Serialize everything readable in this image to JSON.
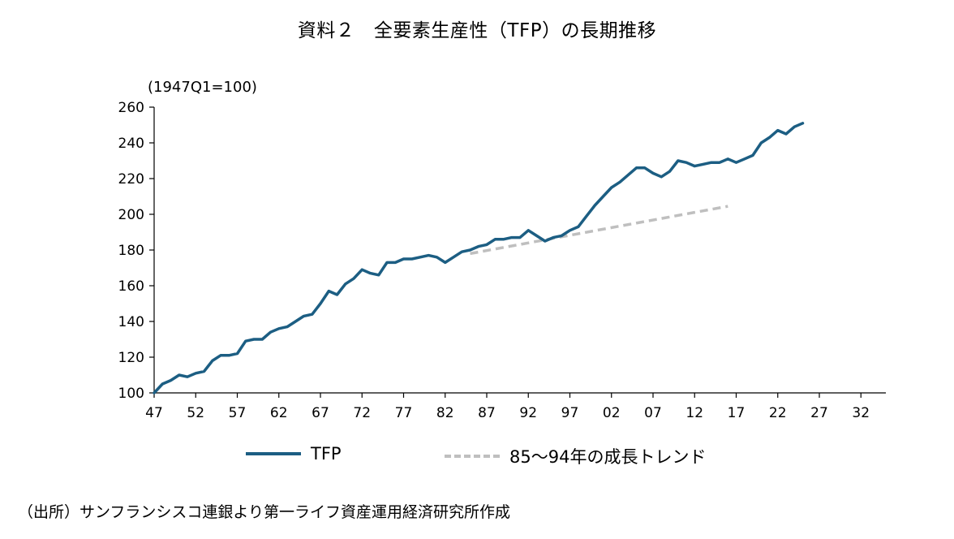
{
  "title": "資料２　全要素生産性（TFP）の長期推移",
  "unit_label": "(1947Q1=100)",
  "source": "（出所）サンフランシスコ連銀より第一ライフ資産運用経済研究所作成",
  "legend": {
    "tfp": "TFP",
    "trend": "85～94年の成長トレンド"
  },
  "colors": {
    "tfp": "#1c5e83",
    "trend": "#bfbfbf",
    "axis": "#000000"
  },
  "chart_data": {
    "type": "line",
    "title": "資料２　全要素生産性（TFP）の長期推移",
    "ylabel": "(1947Q1=100)",
    "xlabel": "",
    "ylim": [
      100,
      260
    ],
    "xlim": [
      1947,
      2035
    ],
    "y_ticks": [
      "100",
      "120",
      "140",
      "160",
      "180",
      "200",
      "220",
      "240",
      "260"
    ],
    "x_ticks": [
      "47",
      "52",
      "57",
      "62",
      "67",
      "72",
      "77",
      "82",
      "87",
      "92",
      "97",
      "02",
      "07",
      "12",
      "17",
      "22",
      "27",
      "32"
    ],
    "x_tick_years": [
      1947,
      1952,
      1957,
      1962,
      1967,
      1972,
      1977,
      1982,
      1987,
      1992,
      1997,
      2002,
      2007,
      2012,
      2017,
      2022,
      2027,
      2032
    ],
    "series": [
      {
        "name": "TFP",
        "style": "solid",
        "x": [
          1947,
          1948,
          1949,
          1950,
          1951,
          1952,
          1953,
          1954,
          1955,
          1956,
          1957,
          1958,
          1959,
          1960,
          1961,
          1962,
          1963,
          1964,
          1965,
          1966,
          1967,
          1968,
          1969,
          1970,
          1971,
          1972,
          1973,
          1974,
          1975,
          1976,
          1977,
          1978,
          1979,
          1980,
          1981,
          1982,
          1983,
          1984,
          1985,
          1986,
          1987,
          1988,
          1989,
          1990,
          1991,
          1992,
          1993,
          1994,
          1995,
          1996,
          1997,
          1998,
          1999,
          2000,
          2001,
          2002,
          2003,
          2004,
          2005,
          2006,
          2007,
          2008,
          2009,
          2010,
          2011,
          2012,
          2013,
          2014,
          2015,
          2016,
          2017,
          2018,
          2019,
          2020,
          2021,
          2022,
          2023,
          2024,
          2025
        ],
        "values": [
          100,
          105,
          107,
          110,
          109,
          111,
          112,
          118,
          121,
          121,
          122,
          129,
          130,
          130,
          134,
          136,
          137,
          140,
          143,
          144,
          150,
          157,
          155,
          161,
          164,
          169,
          167,
          166,
          173,
          173,
          175,
          175,
          176,
          177,
          176,
          173,
          176,
          179,
          180,
          182,
          183,
          186,
          186,
          187,
          187,
          191,
          188,
          185,
          187,
          188,
          191,
          193,
          199,
          205,
          210,
          215,
          218,
          222,
          226,
          226,
          223,
          221,
          224,
          230,
          229,
          227,
          228,
          229,
          229,
          231,
          229,
          231,
          233,
          240,
          243,
          247,
          245,
          249,
          251
        ]
      },
      {
        "name": "85～94年の成長トレンド",
        "style": "dashed",
        "x": [
          1985,
          2016
        ],
        "values": [
          178,
          204.5
        ]
      }
    ]
  }
}
